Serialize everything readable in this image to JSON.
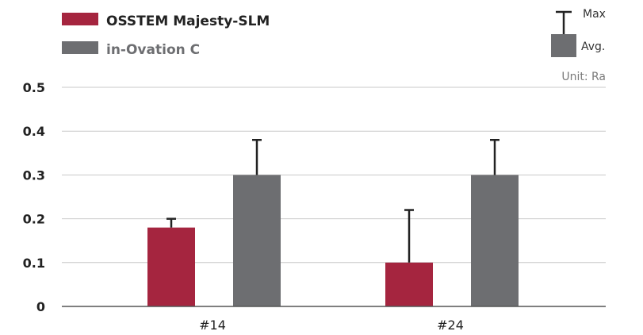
{
  "chart_data": {
    "type": "bar",
    "categories": [
      "#14",
      "#24"
    ],
    "series": [
      {
        "name": "OSSTEM Majesty-SLM",
        "color": "#a5253f",
        "values": [
          0.18,
          0.1
        ],
        "max": [
          0.2,
          0.22
        ]
      },
      {
        "name": "in-Ovation C",
        "color": "#6d6e71",
        "values": [
          0.3,
          0.3
        ],
        "max": [
          0.38,
          0.38
        ]
      }
    ],
    "y_ticks": [
      "0",
      "0.1",
      "0.2",
      "0.3",
      "0.4",
      "0.5"
    ],
    "ylim": [
      0,
      0.5
    ],
    "grid": true,
    "legend_position": "top-left",
    "key": {
      "max_label": "Max",
      "avg_label": "Avg.",
      "unit_label": "Unit: Ra"
    }
  }
}
